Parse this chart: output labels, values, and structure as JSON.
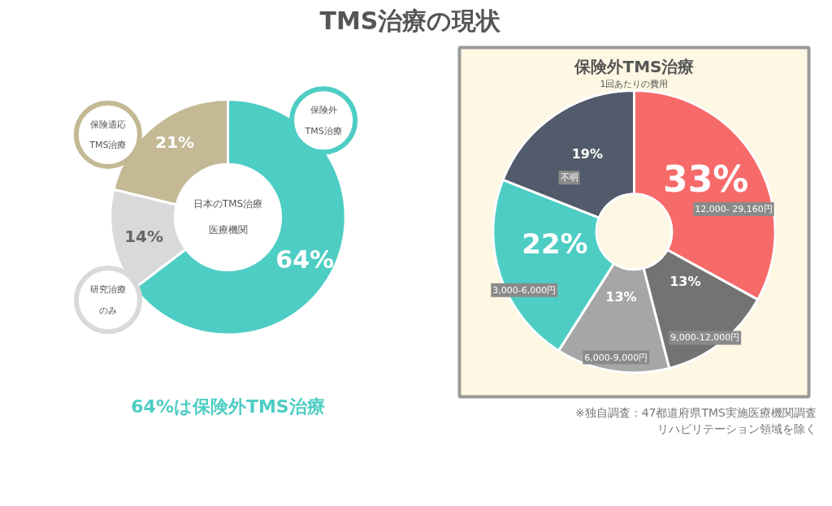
{
  "chart_data": [
    {
      "type": "donut",
      "title": "TMS治療の現状",
      "categories": [
        "保険外TMS治療",
        "研究治療のみ",
        "保険適応TMS治療"
      ],
      "values": [
        64,
        14,
        21
      ],
      "colors": [
        "#4ecdc4",
        "#d9d9d9",
        "#c4b994"
      ],
      "value_labels": [
        "64%",
        "14%",
        "21%"
      ],
      "annotations": [
        "日本のTMS治療医療機関",
        "64%は保険外TMS治療"
      ]
    },
    {
      "type": "donut",
      "title": "保険外TMS治療",
      "subtitle": "1回あたりの費用",
      "categories": [
        "12,000- 29,160円",
        "9,000-12,000円",
        "6,000-9,000円",
        "3,000-6,000円",
        "不明"
      ],
      "values": [
        33,
        13,
        13,
        22,
        19
      ],
      "colors": [
        "#f76a6a",
        "#737373",
        "#a6a6a6",
        "#4ecdc4",
        "#515b6b"
      ],
      "value_labels": [
        "33%",
        "13%",
        "13%",
        "22%",
        "19%"
      ],
      "annotations": [
        "※独自調査：47都道府県TMS実施医療機関調査",
        "リハビリテーション領域を除く"
      ]
    }
  ]
}
